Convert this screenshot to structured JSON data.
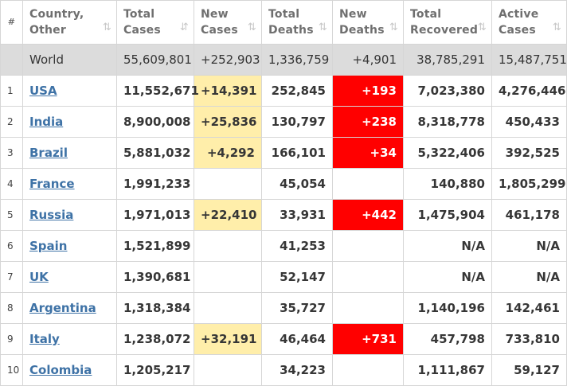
{
  "headers": {
    "idx": "#",
    "country": [
      "Country,",
      "Other"
    ],
    "total_cases": [
      "Total",
      "Cases"
    ],
    "new_cases": [
      "New",
      "Cases"
    ],
    "total_deaths": [
      "Total",
      "Deaths"
    ],
    "new_deaths": [
      "New",
      "Deaths"
    ],
    "total_recovered": [
      "Total",
      "Recovered"
    ],
    "active_cases": [
      "Active",
      "Cases"
    ]
  },
  "sort_icons": {
    "default": "⇅",
    "active": "⇵"
  },
  "world": {
    "country": "World",
    "total_cases": "55,609,801",
    "new_cases": "+252,903",
    "total_deaths": "1,336,759",
    "new_deaths": "+4,901",
    "total_recovered": "38,785,291",
    "active_cases": "15,487,751"
  },
  "rows": [
    {
      "idx": "1",
      "country": "USA",
      "total_cases": "11,552,671",
      "new_cases": "+14,391",
      "total_deaths": "252,845",
      "new_deaths": "+193",
      "total_recovered": "7,023,380",
      "active_cases": "4,276,446"
    },
    {
      "idx": "2",
      "country": "India",
      "total_cases": "8,900,008",
      "new_cases": "+25,836",
      "total_deaths": "130,797",
      "new_deaths": "+238",
      "total_recovered": "8,318,778",
      "active_cases": "450,433"
    },
    {
      "idx": "3",
      "country": "Brazil",
      "total_cases": "5,881,032",
      "new_cases": "+4,292",
      "total_deaths": "166,101",
      "new_deaths": "+34",
      "total_recovered": "5,322,406",
      "active_cases": "392,525"
    },
    {
      "idx": "4",
      "country": "France",
      "total_cases": "1,991,233",
      "new_cases": "",
      "total_deaths": "45,054",
      "new_deaths": "",
      "total_recovered": "140,880",
      "active_cases": "1,805,299"
    },
    {
      "idx": "5",
      "country": "Russia",
      "total_cases": "1,971,013",
      "new_cases": "+22,410",
      "total_deaths": "33,931",
      "new_deaths": "+442",
      "total_recovered": "1,475,904",
      "active_cases": "461,178"
    },
    {
      "idx": "6",
      "country": "Spain",
      "total_cases": "1,521,899",
      "new_cases": "",
      "total_deaths": "41,253",
      "new_deaths": "",
      "total_recovered": "N/A",
      "active_cases": "N/A"
    },
    {
      "idx": "7",
      "country": "UK",
      "total_cases": "1,390,681",
      "new_cases": "",
      "total_deaths": "52,147",
      "new_deaths": "",
      "total_recovered": "N/A",
      "active_cases": "N/A"
    },
    {
      "idx": "8",
      "country": "Argentina",
      "total_cases": "1,318,384",
      "new_cases": "",
      "total_deaths": "35,727",
      "new_deaths": "",
      "total_recovered": "1,140,196",
      "active_cases": "142,461"
    },
    {
      "idx": "9",
      "country": "Italy",
      "total_cases": "1,238,072",
      "new_cases": "+32,191",
      "total_deaths": "46,464",
      "new_deaths": "+731",
      "total_recovered": "457,798",
      "active_cases": "733,810"
    },
    {
      "idx": "10",
      "country": "Colombia",
      "total_cases": "1,205,217",
      "new_cases": "",
      "total_deaths": "34,223",
      "new_deaths": "",
      "total_recovered": "1,111,867",
      "active_cases": "59,127"
    }
  ],
  "colors": {
    "new_cases_highlight": "#ffeeaa",
    "new_deaths_highlight": "#ff0000",
    "world_row_bg": "#dcdcdc",
    "country_link": "#3e72a6"
  }
}
